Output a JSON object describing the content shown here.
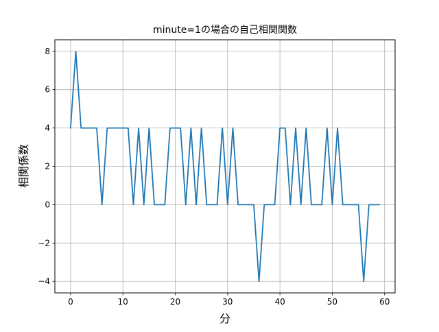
{
  "chart_data": {
    "type": "line",
    "title": "minute=1の場合の自己相関関数",
    "xlabel": "分",
    "ylabel": "相関係数",
    "xlim": [
      -3,
      62
    ],
    "ylim": [
      -4.6,
      8.6
    ],
    "xticks": [
      0,
      10,
      20,
      30,
      40,
      50,
      60
    ],
    "yticks": [
      -4,
      -2,
      0,
      2,
      4,
      6,
      8
    ],
    "xtick_labels": [
      "0",
      "10",
      "20",
      "30",
      "40",
      "50",
      "60"
    ],
    "ytick_labels": [
      "−4",
      "−2",
      "0",
      "2",
      "4",
      "6",
      "8"
    ],
    "grid": true,
    "line_color": "#1f77b4",
    "x": [
      0,
      1,
      2,
      3,
      4,
      5,
      6,
      7,
      8,
      9,
      10,
      11,
      12,
      13,
      14,
      15,
      16,
      17,
      18,
      19,
      20,
      21,
      22,
      23,
      24,
      25,
      26,
      27,
      28,
      29,
      30,
      31,
      32,
      33,
      34,
      35,
      36,
      37,
      38,
      39,
      40,
      41,
      42,
      43,
      44,
      45,
      46,
      47,
      48,
      49,
      50,
      51,
      52,
      53,
      54,
      55,
      56,
      57,
      58,
      59
    ],
    "series": [
      {
        "values": [
          4,
          8,
          4,
          4,
          4,
          4,
          0,
          4,
          4,
          4,
          4,
          4,
          0,
          4,
          0,
          4,
          0,
          0,
          0,
          4,
          4,
          4,
          0,
          4,
          0,
          4,
          0,
          0,
          0,
          4,
          0,
          4,
          0,
          0,
          0,
          0,
          -4,
          0,
          0,
          0,
          4,
          4,
          0,
          4,
          0,
          4,
          0,
          0,
          0,
          4,
          0,
          4,
          0,
          0,
          0,
          0,
          -4,
          0,
          0,
          0
        ]
      }
    ]
  }
}
